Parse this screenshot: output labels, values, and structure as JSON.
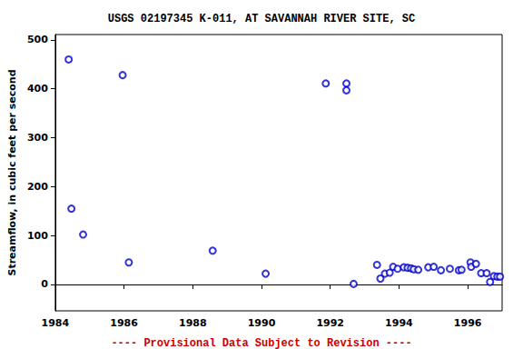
{
  "chart_data": {
    "type": "scatter",
    "title": "USGS 02197345 K-011, AT SAVANNAH RIVER SITE, SC",
    "y_label": "Streamflow, in cubic feet per second",
    "annotation": "---- Provisional Data Subject to Revision ----",
    "x": [
      1984.39,
      1984.47,
      1984.81,
      1985.96,
      1986.14,
      1988.58,
      1990.12,
      1991.87,
      1992.47,
      1992.47,
      1992.68,
      1993.36,
      1993.46,
      1993.59,
      1993.73,
      1993.83,
      1993.96,
      1994.14,
      1994.25,
      1994.35,
      1994.43,
      1994.56,
      1994.85,
      1995.01,
      1995.22,
      1995.48,
      1995.74,
      1995.82,
      1996.08,
      1996.1,
      1996.24,
      1996.39,
      1996.55,
      1996.65,
      1996.76,
      1996.86,
      1996.94
    ],
    "values": [
      460,
      155,
      102,
      428,
      45,
      69,
      22,
      411,
      411,
      397,
      1,
      40,
      12,
      22,
      24,
      36,
      32,
      35,
      34,
      33,
      31,
      30,
      35,
      36,
      29,
      32,
      29,
      30,
      45,
      36,
      42,
      23,
      23,
      5,
      17,
      16,
      16
    ],
    "color": "#0000cc",
    "marker": "circle-open",
    "xlim": [
      1984,
      1997
    ],
    "xticks": [
      1984,
      1986,
      1988,
      1990,
      1992,
      1994,
      1996
    ],
    "ylim": [
      -54,
      511
    ],
    "yticks": [
      0,
      100,
      200,
      300,
      400,
      500
    ],
    "grid": false
  }
}
